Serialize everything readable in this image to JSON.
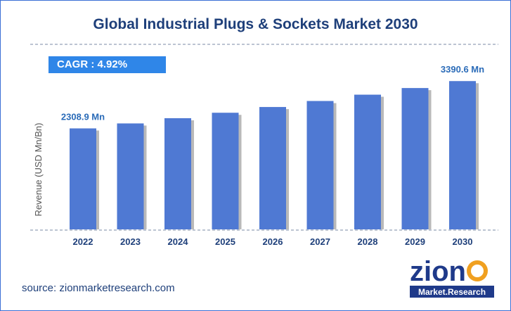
{
  "chart_data": {
    "type": "bar",
    "title": "Global Industrial Plugs & Sockets Market 2030",
    "categories": [
      "2022",
      "2023",
      "2024",
      "2025",
      "2026",
      "2027",
      "2028",
      "2029",
      "2030"
    ],
    "values": [
      2308.9,
      2422.5,
      2541.7,
      2666.7,
      2797.9,
      2935.6,
      3080.0,
      3231.6,
      3390.6
    ],
    "data_labels": {
      "2022": "2308.9 Mn",
      "2030": "3390.6 Mn"
    },
    "xlabel": "",
    "ylabel": "Revenue (USD Mn/Bn)",
    "ylim": [
      0,
      3700
    ],
    "grid": false,
    "colors": {
      "bar": "#4f79d3",
      "bar_shadow": "#b9b9b9",
      "label": "#2a6bb8",
      "axis": "#1e3f7a"
    }
  },
  "cagr": {
    "label": "CAGR :",
    "value": "4.92%"
  },
  "source": "source: zionmarketresearch.com",
  "logo": {
    "word": "zion",
    "sub": "Market.Research"
  }
}
